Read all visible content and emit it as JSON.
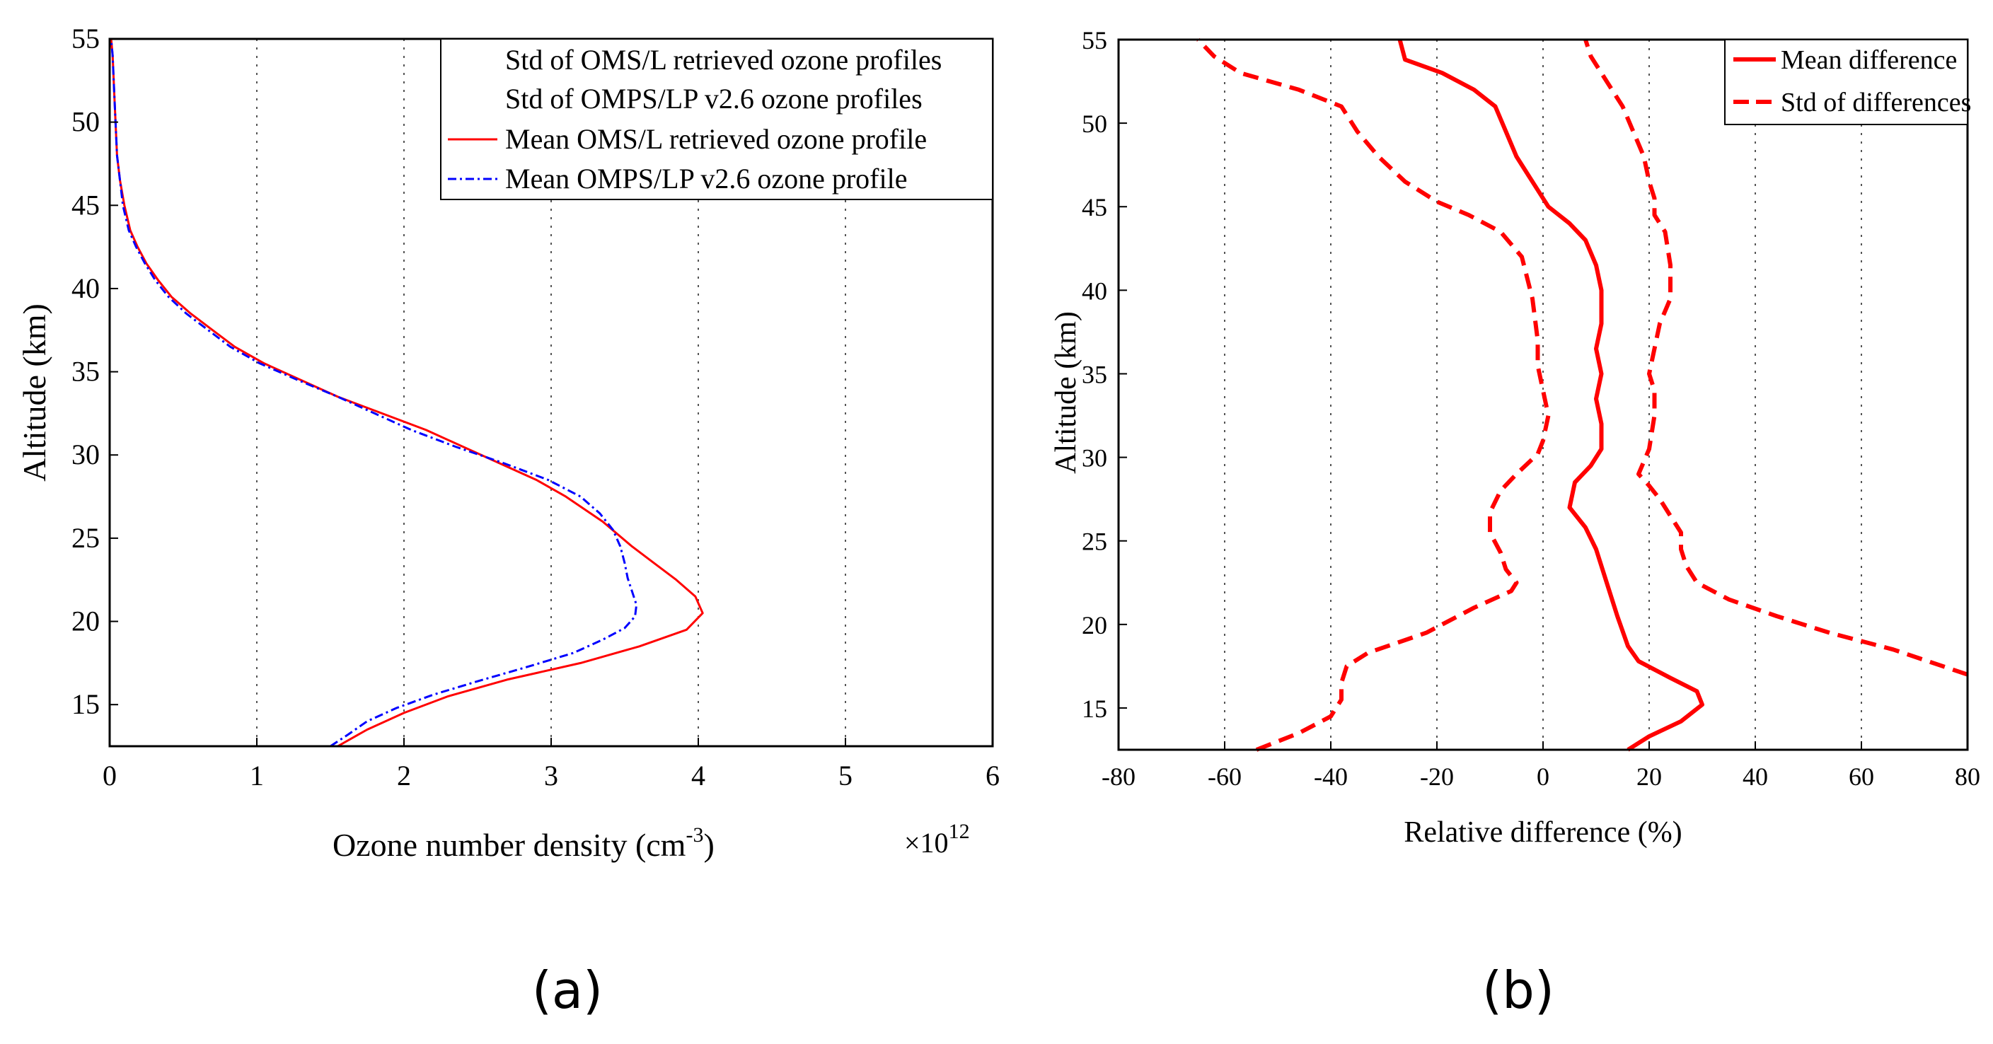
{
  "chart_data": [
    {
      "type": "line",
      "panel_label": "(a)",
      "xlabel": "Ozone number density (cm",
      "xlabel_sup": "-3",
      "xlabel_tail": ")",
      "ylabel": "Altitude (km)",
      "x_multiplier": "×10",
      "x_multiplier_exp": "12",
      "xlim": [
        0,
        6
      ],
      "ylim": [
        12.5,
        55
      ],
      "xticks": [
        "0",
        "1",
        "2",
        "3",
        "4",
        "5",
        "6"
      ],
      "yticks": [
        "15",
        "20",
        "25",
        "30",
        "35",
        "40",
        "45",
        "50",
        "55"
      ],
      "legend": [
        "Std of OMS/L retrieved ozone profiles",
        "Std of OMPS/LP v2.6 ozone profiles",
        "Mean OMS/L retrieved ozone profile",
        "Mean OMPS/LP v2.6 ozone profile"
      ],
      "series": [
        {
          "name": "Mean OMS/L retrieved ozone profile",
          "color": "#ff0000",
          "style": "solid",
          "points": [
            [
              1.55,
              12.5
            ],
            [
              1.75,
              13.5
            ],
            [
              2.0,
              14.5
            ],
            [
              2.3,
              15.5
            ],
            [
              2.7,
              16.5
            ],
            [
              3.2,
              17.5
            ],
            [
              3.6,
              18.5
            ],
            [
              3.92,
              19.5
            ],
            [
              4.03,
              20.5
            ],
            [
              3.98,
              21.5
            ],
            [
              3.85,
              22.5
            ],
            [
              3.7,
              23.5
            ],
            [
              3.55,
              24.5
            ],
            [
              3.35,
              26
            ],
            [
              3.1,
              27.5
            ],
            [
              2.9,
              28.5
            ],
            [
              2.65,
              29.5
            ],
            [
              2.4,
              30.5
            ],
            [
              2.15,
              31.5
            ],
            [
              1.85,
              32.5
            ],
            [
              1.55,
              33.5
            ],
            [
              1.3,
              34.5
            ],
            [
              1.05,
              35.5
            ],
            [
              0.85,
              36.5
            ],
            [
              0.7,
              37.5
            ],
            [
              0.55,
              38.5
            ],
            [
              0.42,
              39.5
            ],
            [
              0.33,
              40.5
            ],
            [
              0.25,
              41.5
            ],
            [
              0.19,
              42.5
            ],
            [
              0.14,
              43.5
            ],
            [
              0.1,
              45
            ],
            [
              0.07,
              46.5
            ],
            [
              0.05,
              48
            ],
            [
              0.04,
              50
            ],
            [
              0.03,
              52
            ],
            [
              0.02,
              54
            ],
            [
              0.01,
              55
            ]
          ]
        },
        {
          "name": "Mean OMPS/LP v2.6 ozone profile",
          "color": "#0000ff",
          "style": "dashdot",
          "points": [
            [
              1.5,
              12.5
            ],
            [
              1.62,
              13.2
            ],
            [
              1.75,
              14
            ],
            [
              1.95,
              14.8
            ],
            [
              2.2,
              15.6
            ],
            [
              2.5,
              16.4
            ],
            [
              2.85,
              17.3
            ],
            [
              3.15,
              18.1
            ],
            [
              3.35,
              18.9
            ],
            [
              3.5,
              19.6
            ],
            [
              3.57,
              20.3
            ],
            [
              3.58,
              21
            ],
            [
              3.55,
              21.8
            ],
            [
              3.52,
              22.6
            ],
            [
              3.5,
              23.5
            ],
            [
              3.47,
              24.5
            ],
            [
              3.42,
              25.5
            ],
            [
              3.33,
              26.5
            ],
            [
              3.2,
              27.5
            ],
            [
              2.98,
              28.5
            ],
            [
              2.68,
              29.5
            ],
            [
              2.35,
              30.5
            ],
            [
              2.05,
              31.5
            ],
            [
              1.8,
              32.5
            ],
            [
              1.55,
              33.5
            ],
            [
              1.28,
              34.5
            ],
            [
              1.02,
              35.5
            ],
            [
              0.82,
              36.5
            ],
            [
              0.67,
              37.5
            ],
            [
              0.52,
              38.5
            ],
            [
              0.4,
              39.5
            ],
            [
              0.31,
              40.5
            ],
            [
              0.24,
              41.5
            ],
            [
              0.18,
              42.5
            ],
            [
              0.13,
              43.5
            ],
            [
              0.09,
              45
            ],
            [
              0.07,
              46.5
            ],
            [
              0.05,
              48
            ],
            [
              0.04,
              50
            ],
            [
              0.03,
              52
            ],
            [
              0.02,
              54
            ],
            [
              0.01,
              55
            ]
          ]
        }
      ]
    },
    {
      "type": "line",
      "panel_label": "(b)",
      "xlabel": "Relative difference (%)",
      "ylabel": "Altitude (km)",
      "xlim": [
        -80,
        80
      ],
      "ylim": [
        12.5,
        55
      ],
      "xticks": [
        "-80",
        "-60",
        "-40",
        "-20",
        "0",
        "20",
        "40",
        "60",
        "80"
      ],
      "yticks": [
        "15",
        "20",
        "25",
        "30",
        "35",
        "40",
        "45",
        "50",
        "55"
      ],
      "legend": [
        "Mean difference",
        "Std of differences"
      ],
      "series": [
        {
          "name": "Mean difference",
          "color": "#ff0000",
          "style": "solid",
          "points": [
            [
              16,
              12.5
            ],
            [
              20,
              13.3
            ],
            [
              26,
              14.2
            ],
            [
              30,
              15.2
            ],
            [
              29,
              16
            ],
            [
              24,
              16.8
            ],
            [
              18,
              17.8
            ],
            [
              16,
              18.7
            ],
            [
              14,
              20.5
            ],
            [
              12,
              22.5
            ],
            [
              10,
              24.5
            ],
            [
              8,
              25.8
            ],
            [
              5,
              27
            ],
            [
              6,
              28.5
            ],
            [
              9,
              29.5
            ],
            [
              11,
              30.5
            ],
            [
              11,
              32
            ],
            [
              10,
              33.5
            ],
            [
              11,
              35
            ],
            [
              10,
              36.5
            ],
            [
              11,
              38
            ],
            [
              11,
              40
            ],
            [
              10,
              41.5
            ],
            [
              8,
              43
            ],
            [
              5,
              44
            ],
            [
              1,
              45
            ],
            [
              -2,
              46.5
            ],
            [
              -5,
              48
            ],
            [
              -7,
              49.5
            ],
            [
              -9,
              51
            ],
            [
              -13,
              52
            ],
            [
              -19,
              53
            ],
            [
              -26,
              53.8
            ],
            [
              -27,
              55
            ]
          ]
        },
        {
          "name": "Std of differences",
          "color": "#ff0000",
          "style": "dashed",
          "points": [
            [
              -54,
              12.5
            ],
            [
              -46,
              13.5
            ],
            [
              -40,
              14.5
            ],
            [
              -38,
              15.5
            ],
            [
              -38,
              16.5
            ],
            [
              -37,
              17.5
            ],
            [
              -33,
              18.3
            ],
            [
              -22,
              19.5
            ],
            [
              -13,
              21
            ],
            [
              -6,
              22
            ],
            [
              -5,
              22.5
            ],
            [
              -7,
              23.3
            ],
            [
              -8,
              24.3
            ],
            [
              -10,
              25.5
            ],
            [
              -10,
              26.7
            ],
            [
              -8,
              28
            ],
            [
              -5,
              29
            ],
            [
              -1,
              30.2
            ],
            [
              0,
              31
            ],
            [
              1,
              32.5
            ],
            [
              0,
              34
            ],
            [
              -1,
              35.5
            ],
            [
              -1,
              37
            ],
            [
              -2,
              39.5
            ],
            [
              -4,
              42
            ],
            [
              -8,
              43.5
            ],
            [
              -14,
              44.5
            ],
            [
              -20,
              45.3
            ],
            [
              -26,
              46.5
            ],
            [
              -31,
              48
            ],
            [
              -35,
              49.5
            ],
            [
              -38,
              51
            ],
            [
              -46,
              52
            ],
            [
              -57,
              53
            ],
            [
              -62,
              54
            ],
            [
              -65,
              55
            ]
          ]
        },
        {
          "name": "Std of differences",
          "color": "#ff0000",
          "style": "dashed",
          "points": [
            [
              80,
              17
            ],
            [
              66,
              18.5
            ],
            [
              54,
              19.5
            ],
            [
              44,
              20.5
            ],
            [
              35,
              21.5
            ],
            [
              29,
              22.5
            ],
            [
              27,
              23.5
            ],
            [
              26,
              24.5
            ],
            [
              26,
              25.5
            ],
            [
              24,
              26.5
            ],
            [
              22,
              27.5
            ],
            [
              20,
              28.3
            ],
            [
              18,
              29
            ],
            [
              20,
              30.5
            ],
            [
              21,
              32.5
            ],
            [
              21,
              34
            ],
            [
              20,
              35
            ],
            [
              21,
              36.5
            ],
            [
              22,
              38
            ],
            [
              24,
              39.5
            ],
            [
              24,
              41.5
            ],
            [
              23,
              43.5
            ],
            [
              21,
              44.5
            ],
            [
              21,
              45.5
            ],
            [
              20,
              46.5
            ],
            [
              19,
              48
            ],
            [
              17,
              49.5
            ],
            [
              15,
              51
            ],
            [
              12,
              52.5
            ],
            [
              9,
              54
            ],
            [
              8,
              55
            ]
          ]
        }
      ]
    }
  ]
}
